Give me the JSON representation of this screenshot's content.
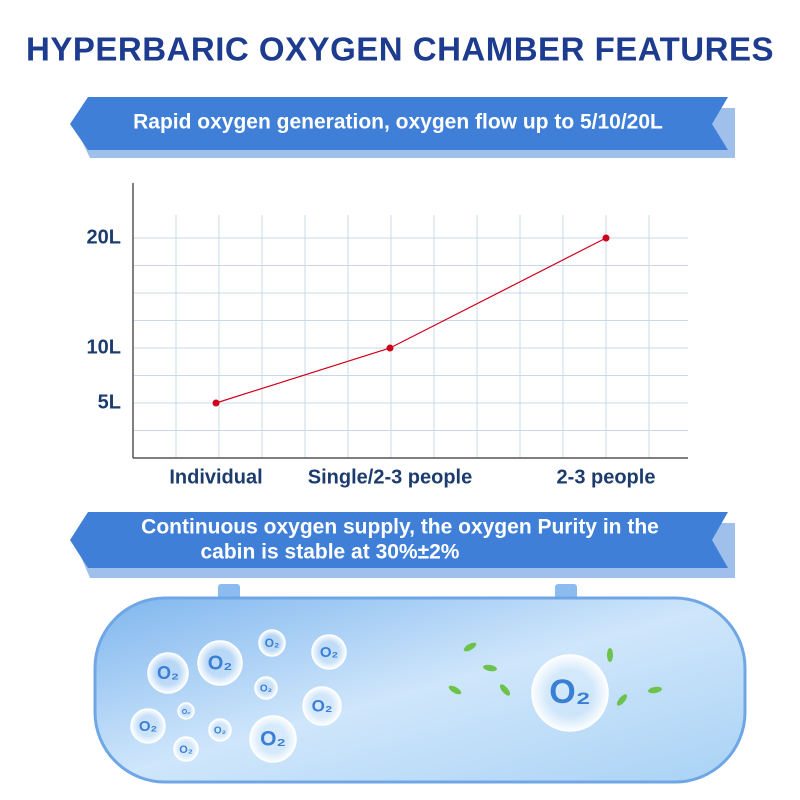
{
  "title": "HYPERBARIC OXYGEN CHAMBER FEATURES",
  "banners": [
    "Rapid oxygen generation, oxygen flow up to 5/10/20L",
    "Continuous oxygen supply, the oxygen Purity in the",
    "cabin is stable at 30%±2%"
  ],
  "bubble_label": "O₂",
  "chart_data": {
    "type": "line",
    "categories": [
      "Individual",
      "Single/2-3 people",
      "2-3 people"
    ],
    "series": [
      {
        "name": "Oxygen flow",
        "color": "#d0021b",
        "values": [
          5,
          10,
          20
        ]
      }
    ],
    "ylim": [
      0,
      25
    ],
    "yticks": [
      {
        "value": 5,
        "label": "5L"
      },
      {
        "value": 10,
        "label": "10L"
      },
      {
        "value": 20,
        "label": "20L"
      }
    ],
    "grid": true
  }
}
